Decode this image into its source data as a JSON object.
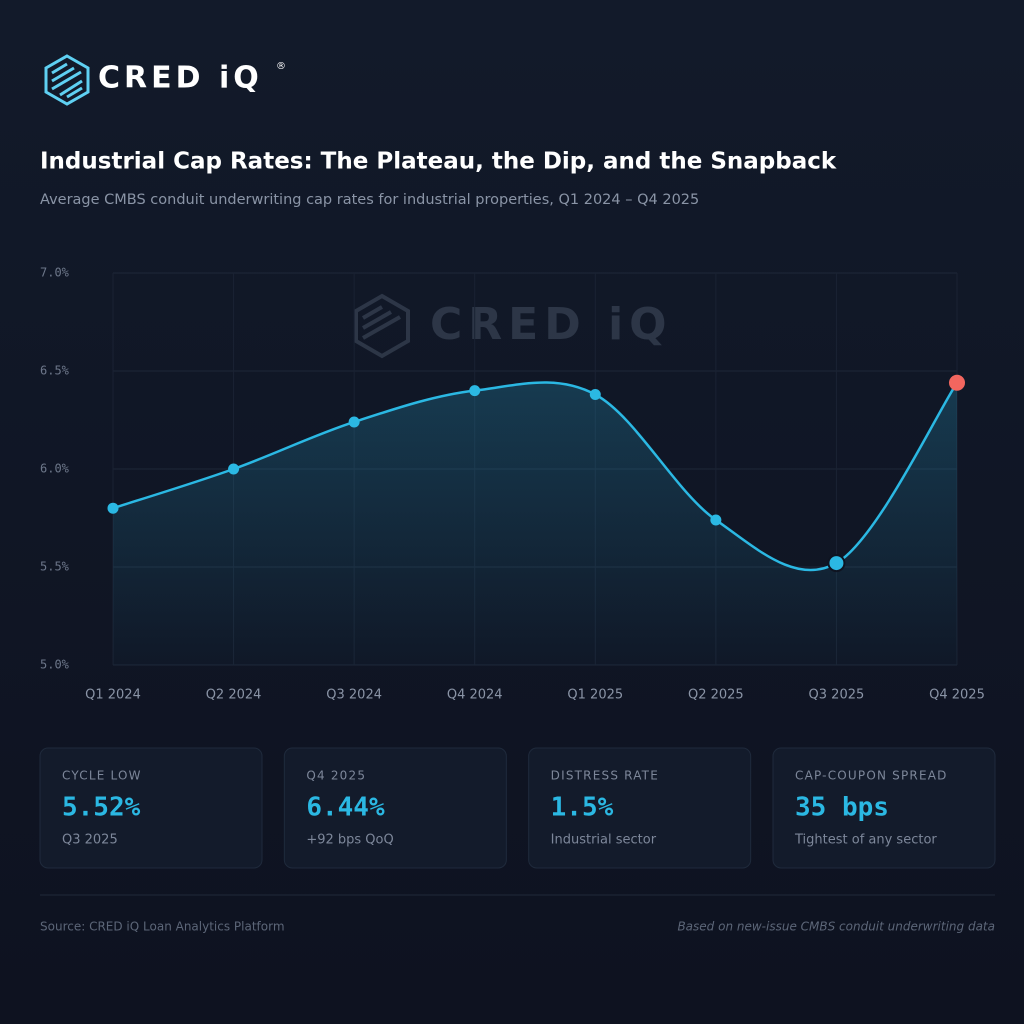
{
  "brand": {
    "name": "CRED iQ",
    "mark": "®"
  },
  "chart_data": {
    "type": "line",
    "title": "Industrial Cap Rates: The Plateau, the Dip, and the Snapback",
    "subtitle": "Average CMBS conduit underwriting cap rates for industrial properties, Q1 2024 – Q4 2025",
    "categories": [
      "Q1 2024",
      "Q2 2024",
      "Q3 2024",
      "Q4 2024",
      "Q1 2025",
      "Q2 2025",
      "Q3 2025",
      "Q4 2025"
    ],
    "series": [
      {
        "color": "#2bb8e3",
        "values": [
          5.8,
          6.0,
          6.24,
          6.4,
          6.38,
          5.74,
          5.52,
          6.44
        ]
      }
    ],
    "last_point_color": "#f2665f",
    "ylim": [
      5,
      7
    ],
    "yticks": [
      {
        "value": 5,
        "label": "5.0%"
      },
      {
        "value": 5.5,
        "label": "5.5%"
      },
      {
        "value": 6,
        "label": "6.0%"
      },
      {
        "value": 6.5,
        "label": "6.5%"
      },
      {
        "value": 7,
        "label": "7.0%"
      }
    ],
    "grid": true
  },
  "stats": [
    {
      "label": "CYCLE LOW",
      "value": "5.52%",
      "note": "Q3 2025"
    },
    {
      "label": "Q4 2025",
      "value": "6.44%",
      "note": "+92 bps QoQ"
    },
    {
      "label": "DISTRESS RATE",
      "value": "1.5%",
      "note": "Industrial sector"
    },
    {
      "label": "CAP-COUPON SPREAD",
      "value": "35 bps",
      "note": "Tightest of any sector"
    }
  ],
  "footer": {
    "source": "Source: CRED iQ Loan Analytics Platform",
    "note": "Based on new-issue CMBS conduit underwriting data"
  }
}
